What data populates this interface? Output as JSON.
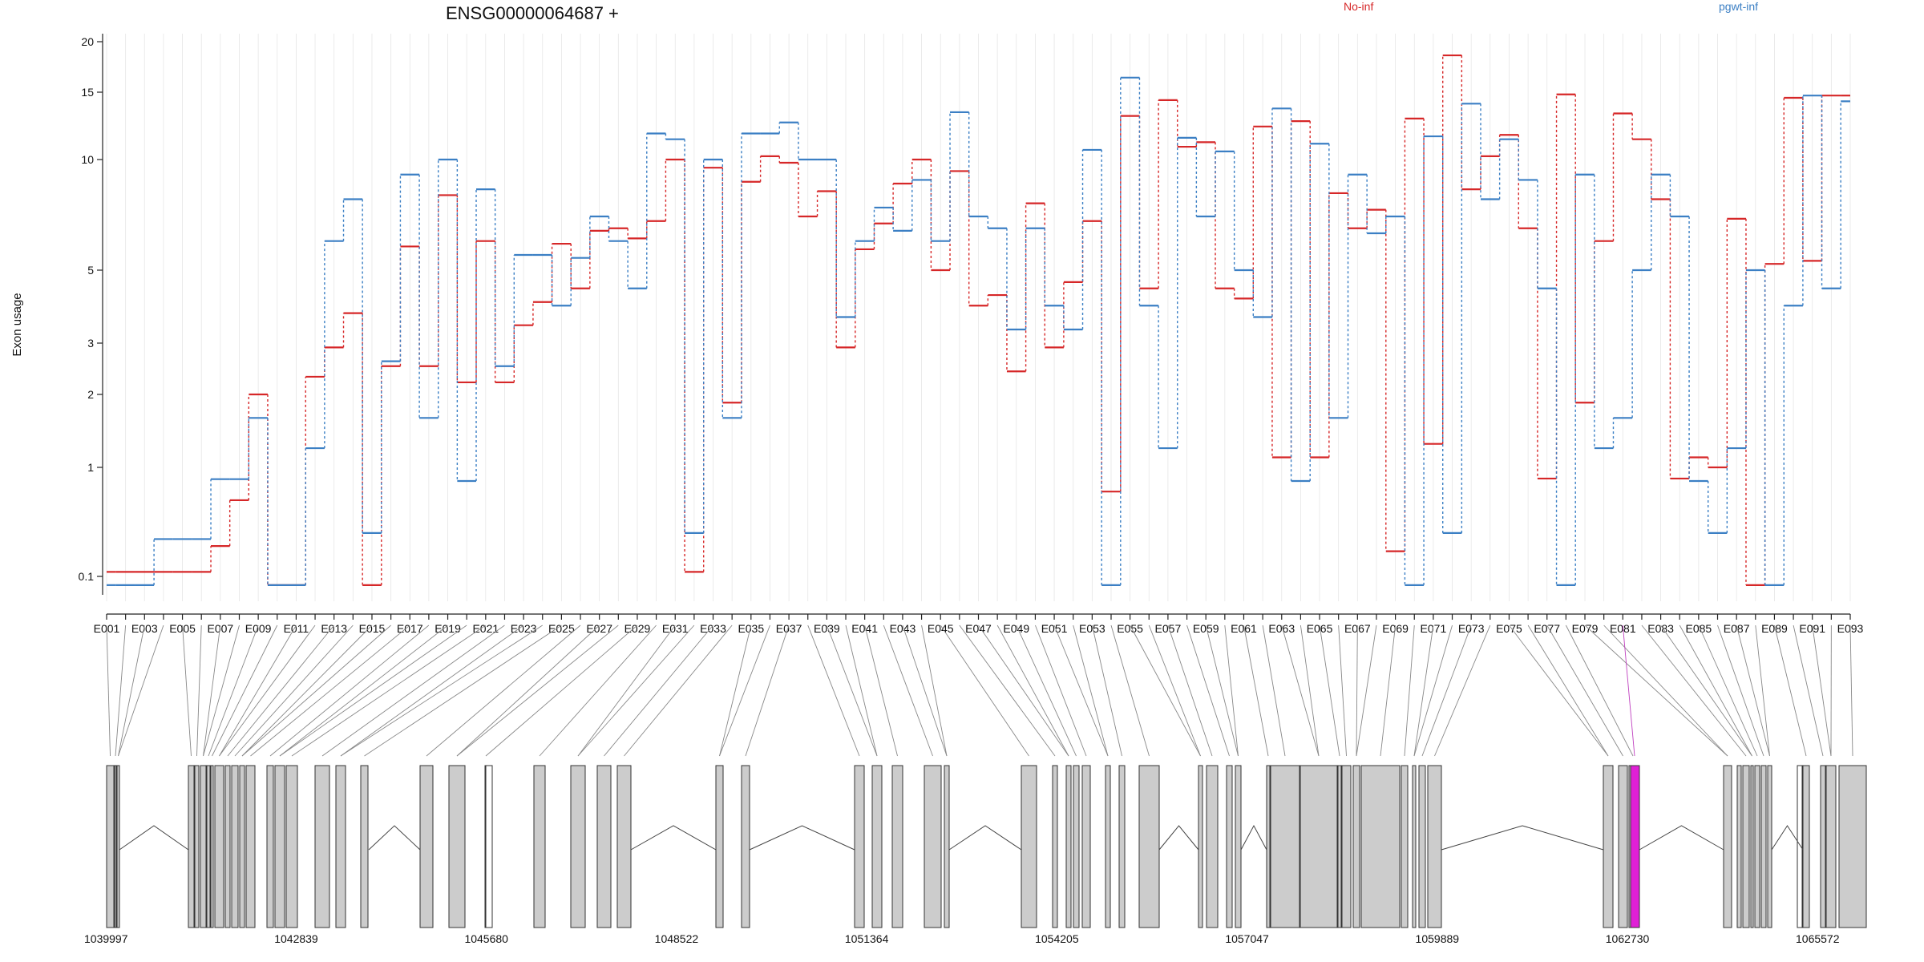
{
  "chart_data": {
    "type": "line",
    "title": "ENSG00000064687 +",
    "ylabel": "Exon usage",
    "xlabel": "",
    "y_scale": "log-like",
    "ylim": [
      0.08,
      22
    ],
    "y_ticks": [
      0.1,
      1,
      2,
      3,
      5,
      10,
      15,
      20
    ],
    "legend": [
      {
        "name": "No-inf",
        "color": "#d62728"
      },
      {
        "name": "pgwt-inf",
        "color": "#3b7fc4"
      }
    ],
    "legend_placement": "top-right",
    "categories": [
      "E001",
      "E002",
      "E003",
      "E004",
      "E005",
      "E006",
      "E007",
      "E008",
      "E009",
      "E010",
      "E011",
      "E012",
      "E013",
      "E014",
      "E015",
      "E016",
      "E017",
      "E018",
      "E019",
      "E020",
      "E021",
      "E022",
      "E023",
      "E024",
      "E025",
      "E026",
      "E027",
      "E028",
      "E029",
      "E030",
      "E031",
      "E032",
      "E033",
      "E034",
      "E035",
      "E036",
      "E037",
      "E038",
      "E039",
      "E040",
      "E041",
      "E042",
      "E043",
      "E044",
      "E045",
      "E046",
      "E047",
      "E048",
      "E049",
      "E050",
      "E051",
      "E052",
      "E053",
      "E054",
      "E055",
      "E056",
      "E057",
      "E058",
      "E059",
      "E060",
      "E061",
      "E062",
      "E063",
      "E064",
      "E065",
      "E066",
      "E067",
      "E068",
      "E069",
      "E070",
      "E071",
      "E072",
      "E073",
      "E074",
      "E075",
      "E076",
      "E077",
      "E078",
      "E079",
      "E080",
      "E081",
      "E082",
      "E083",
      "E084",
      "E085",
      "E086",
      "E087",
      "E088",
      "E089",
      "E090",
      "E091",
      "E092",
      "E093"
    ],
    "x_tick_labels": [
      "E001",
      "E003",
      "E005",
      "E007",
      "E009",
      "E011",
      "E013",
      "E015",
      "E017",
      "E019",
      "E021",
      "E023",
      "E025",
      "E027",
      "E029",
      "E031",
      "E033",
      "E035",
      "E037",
      "E039",
      "E041",
      "E043",
      "E045",
      "E047",
      "E049",
      "E051",
      "E053",
      "E055",
      "E057",
      "E059",
      "E061",
      "E063",
      "E065",
      "E067",
      "E069",
      "E071",
      "E073",
      "E075",
      "E077",
      "E079",
      "E081",
      "E083",
      "E085",
      "E087",
      "E089",
      "E091",
      "E093"
    ],
    "series": [
      {
        "name": "No-inf",
        "color": "#d62728",
        "values": [
          0.11,
          0.11,
          0.11,
          0.11,
          0.11,
          0.11,
          0.19,
          0.5,
          2.0,
          0.09,
          0.09,
          2.3,
          2.9,
          3.7,
          0.09,
          2.5,
          5.8,
          2.5,
          8.0,
          2.2,
          6.0,
          2.2,
          3.4,
          4.0,
          5.9,
          4.4,
          6.4,
          6.5,
          6.1,
          6.8,
          10.0,
          0.11,
          9.5,
          1.85,
          8.7,
          10.2,
          9.8,
          7.0,
          8.2,
          2.9,
          5.7,
          6.7,
          8.6,
          10.0,
          5.0,
          9.3,
          3.9,
          4.2,
          2.4,
          7.6,
          2.9,
          4.6,
          6.8,
          0.6,
          13.0,
          4.4,
          14.3,
          10.8,
          11.1,
          4.4,
          4.1,
          12.2,
          1.1,
          12.6,
          1.1,
          8.1,
          6.5,
          7.3,
          0.17,
          12.8,
          1.25,
          18.5,
          8.3,
          10.2,
          11.6,
          6.5,
          0.79,
          14.8,
          1.85,
          6.0,
          13.2,
          11.3,
          7.8,
          0.79,
          1.1,
          1.0,
          6.9,
          0.09,
          5.2,
          14.5,
          5.3,
          14.7,
          14.7
        ]
      },
      {
        "name": "pgwt-inf",
        "color": "#3b7fc4",
        "values": [
          0.09,
          0.09,
          0.09,
          0.22,
          0.22,
          0.22,
          0.78,
          0.78,
          1.6,
          0.09,
          0.09,
          1.2,
          6.0,
          7.8,
          0.25,
          2.6,
          9.1,
          1.6,
          10.0,
          0.75,
          8.3,
          2.5,
          5.5,
          5.5,
          3.9,
          5.4,
          7.0,
          6.0,
          4.4,
          11.7,
          11.3,
          0.25,
          10.0,
          1.6,
          11.7,
          11.7,
          12.5,
          10.0,
          10.0,
          3.6,
          6.0,
          7.4,
          6.4,
          8.8,
          6.0,
          13.3,
          7.0,
          6.5,
          3.3,
          6.5,
          3.9,
          3.3,
          10.6,
          0.09,
          16.3,
          3.9,
          1.2,
          11.4,
          7.0,
          10.5,
          5.0,
          3.6,
          13.6,
          0.75,
          11.0,
          1.6,
          9.1,
          6.3,
          7.0,
          0.09,
          11.5,
          0.25,
          14.0,
          7.8,
          11.3,
          8.8,
          4.4,
          0.09,
          9.1,
          1.2,
          1.6,
          5.0,
          9.1,
          7.0,
          0.75,
          0.25,
          1.2,
          5.0,
          0.09,
          3.9,
          14.7,
          4.4,
          14.2
        ]
      }
    ],
    "highlighted_exon": "E081"
  },
  "gene_model": {
    "coordinate_labels": [
      "1039997",
      "1042839",
      "1045680",
      "1048522",
      "1051364",
      "1054205",
      "1057047",
      "1059889",
      "1062730",
      "1065572"
    ],
    "coordinate_range": [
      1039997,
      1065572
    ]
  }
}
